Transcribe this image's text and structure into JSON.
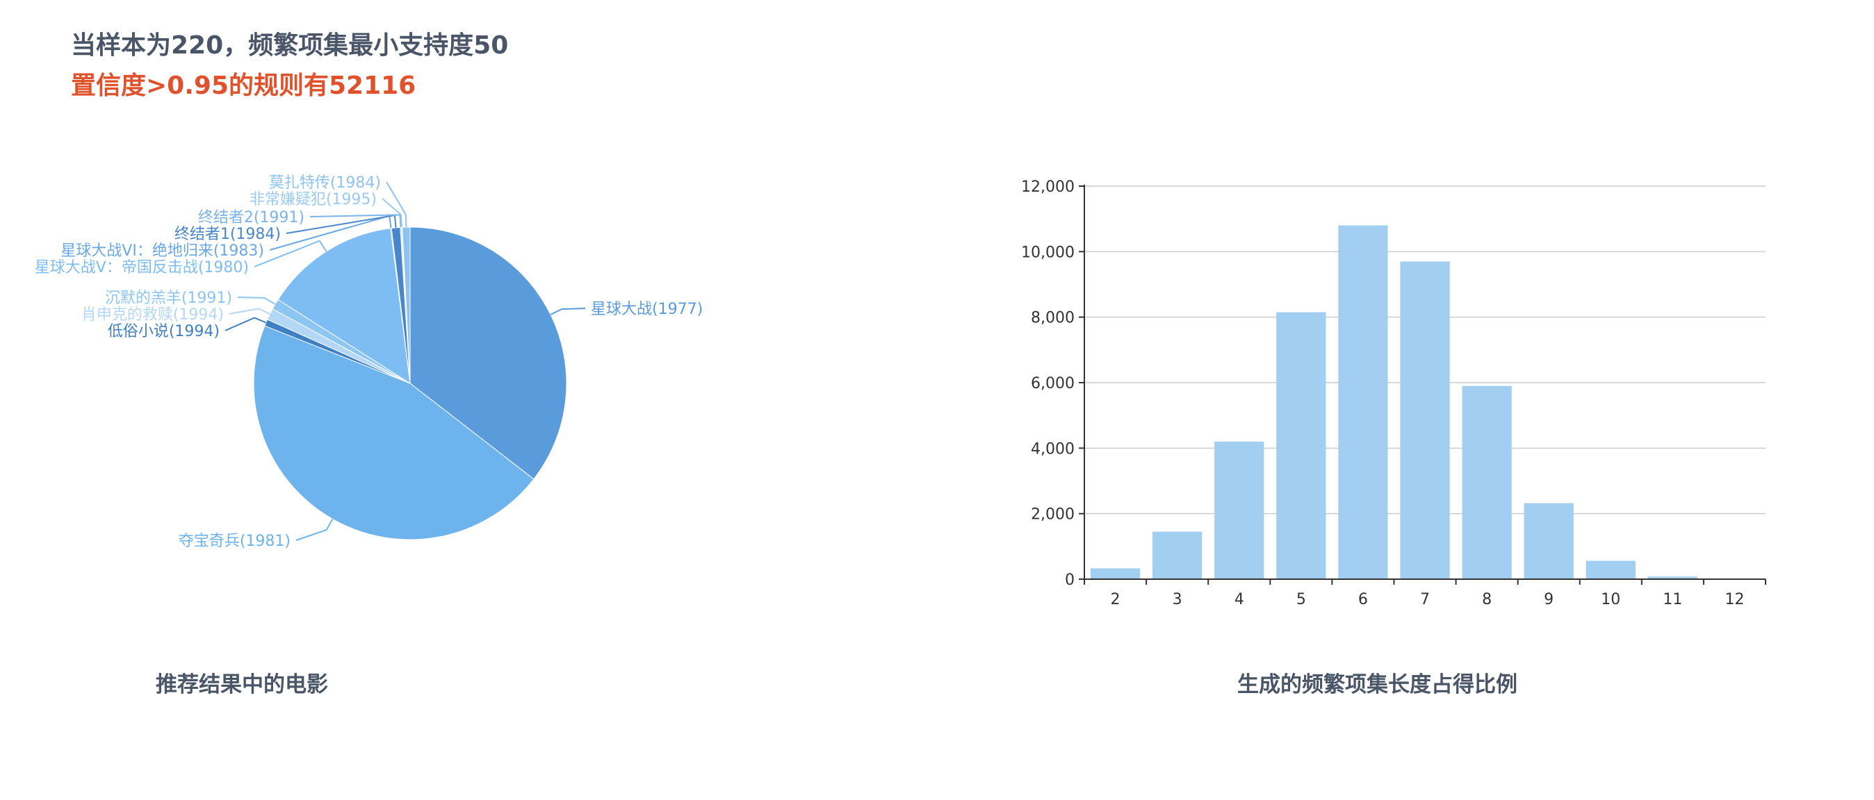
{
  "header": {
    "line1": "当样本为220，频繁项集最小支持度50",
    "line2": "置信度>0.95的规则有52116"
  },
  "captions": {
    "pie": "推荐结果中的电影",
    "bar": "生成的频繁项集长度占得比例"
  },
  "chart_data": [
    {
      "type": "pie",
      "title": "推荐结果中的电影",
      "slices": [
        {
          "label": "星球大战(1977)",
          "value": 35.5,
          "color": "#5a9bdb"
        },
        {
          "label": "夺宝奇兵(1981)",
          "value": 45.5,
          "color": "#6db3ec"
        },
        {
          "label": "低俗小说(1994)",
          "value": 0.7,
          "color": "#3f7fc4"
        },
        {
          "label": "肖申克的救赎(1994)",
          "value": 1.2,
          "color": "#b3d7f5"
        },
        {
          "label": "沉默的羔羊(1991)",
          "value": 1.1,
          "color": "#8cc6f2"
        },
        {
          "label": "星球大战V：帝国反击战(1980)",
          "value": 14.0,
          "color": "#7dbdf4"
        },
        {
          "label": "星球大战VI：绝地归来(1983)",
          "value": 0.1,
          "color": "#6aa8e6"
        },
        {
          "label": "终结者1(1984)",
          "value": 0.9,
          "color": "#4a86cc"
        },
        {
          "label": "终结者2(1991)",
          "value": 0.1,
          "color": "#7bb4ea"
        },
        {
          "label": "非常嫌疑犯(1995)",
          "value": 0.1,
          "color": "#9ccbf2"
        },
        {
          "label": "莫扎特传(1984)",
          "value": 0.8,
          "color": "#8ec3f0"
        }
      ]
    },
    {
      "type": "bar",
      "title": "生成的频繁项集长度占得比例",
      "categories": [
        "2",
        "3",
        "4",
        "5",
        "6",
        "7",
        "8",
        "9",
        "10",
        "11",
        "12"
      ],
      "values": [
        330,
        1450,
        4200,
        8150,
        10800,
        9700,
        5900,
        2320,
        560,
        80,
        10
      ],
      "ylim": [
        0,
        12000
      ],
      "yticks": [
        "0",
        "2,000",
        "4,000",
        "6,000",
        "8,000",
        "10,000",
        "12,000"
      ],
      "grid": true,
      "bar_color": "#a2cff1"
    }
  ]
}
